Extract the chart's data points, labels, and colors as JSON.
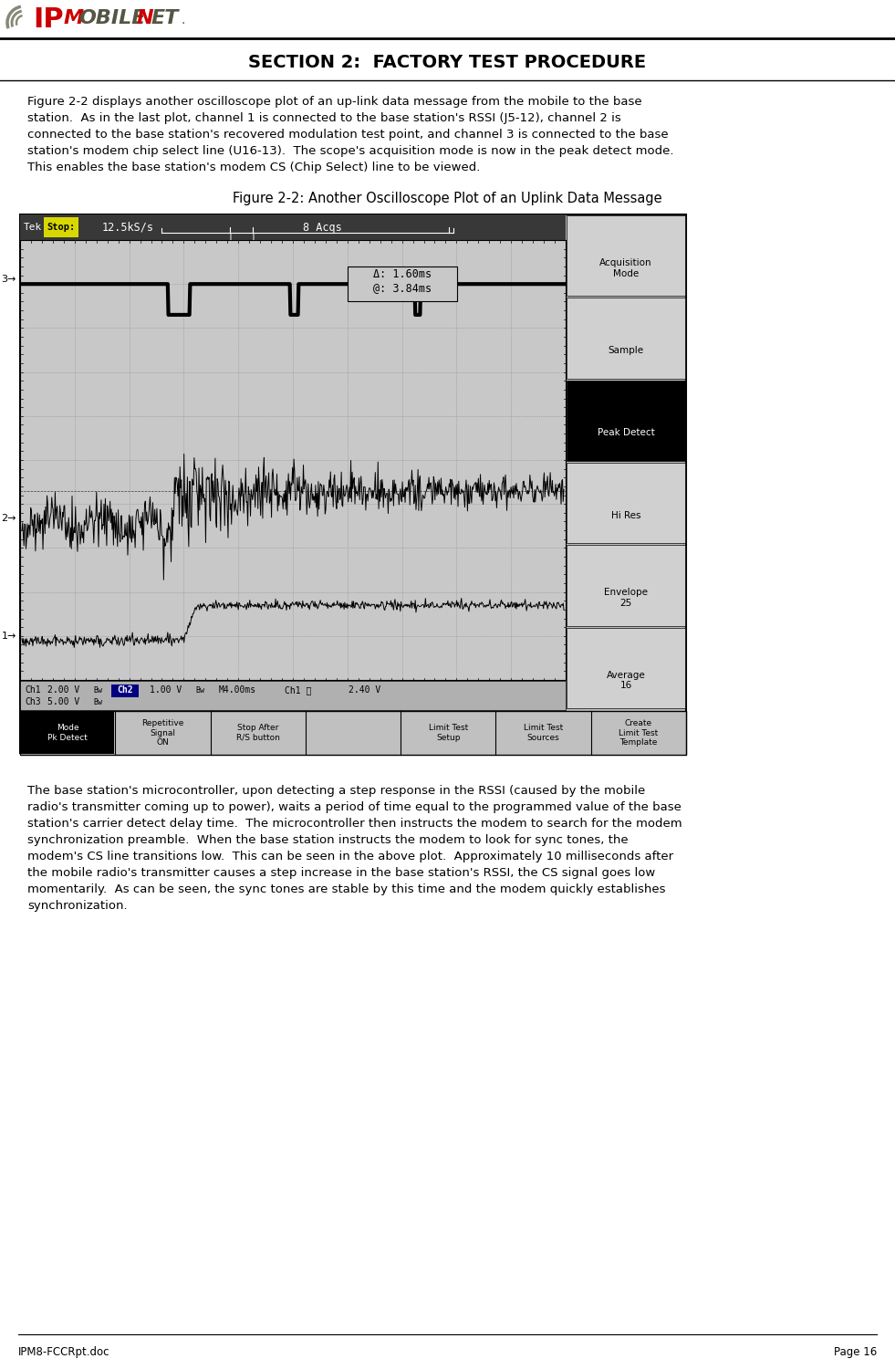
{
  "page_title": "SECTION 2:  FACTORY TEST PROCEDURE",
  "figure_caption": "Figure 2-2: Another Oscilloscope Plot of an Uplink Data Message",
  "body_text_top": "Figure 2-2 displays another oscilloscope plot of an up-link data message from the mobile to the base station.  As in the last plot, channel 1 is connected to the base station's RSSI (J5-12), channel 2 is connected to the base station's recovered modulation test point, and channel 3 is connected to the base station's modem chip select line (U16-13).  The scope's acquisition mode is now in the peak detect mode.  This enables the base station's modem CS (Chip Select) line to be viewed.",
  "body_text_bottom": "The base station's microcontroller, upon detecting a step response in the RSSI (caused by the mobile radio's transmitter coming up to power), waits a period of time equal to the programmed value of the base station's carrier detect delay time.  The microcontroller then instructs the modem to search for the modem synchronization preamble.  When the base station instructs the modem to look for sync tones, the modem's CS line transitions low.  This can be seen in the above plot.  Approximately 10 milliseconds after the mobile radio's transmitter causes a step increase in the base station's RSSI, the CS signal goes low momentarily.  As can be seen, the sync tones are stable by this time and the modem quickly establishes synchronization.",
  "footer_left": "IPM8-FCCRpt.doc",
  "footer_right": "Page 16",
  "scope_menu_items": [
    "Acquisition\nMode",
    "Sample",
    "Peak Detect",
    "Hi Res",
    "Envelope\n25",
    "Average\n16"
  ],
  "scope_bottom_menu": [
    "Mode\nPk Detect",
    "Repetitive\nSignal\nON",
    "Stop After\nR/S button",
    "",
    "Limit Test\nSetup",
    "Limit Test\nSources",
    "Create\nLimit Test\nTemplate"
  ]
}
